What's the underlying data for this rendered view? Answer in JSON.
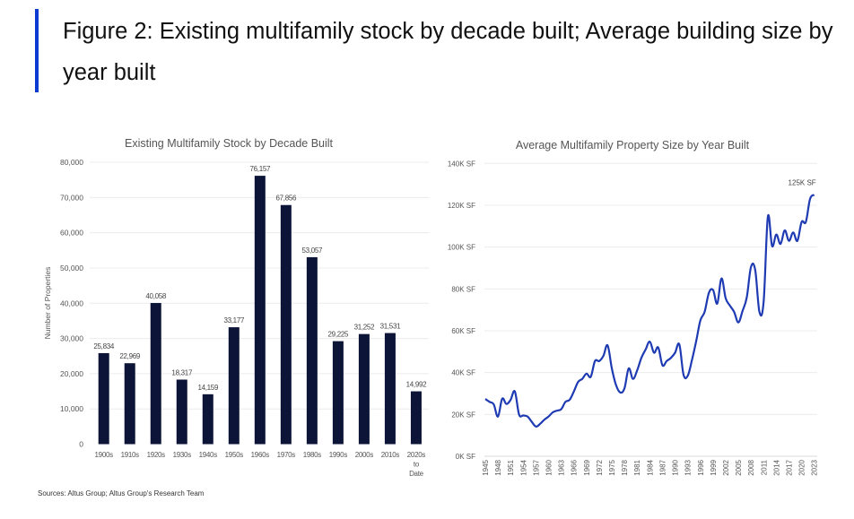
{
  "header": {
    "title": "Figure 2: Existing multifamily stock by decade built; Average building size by year built",
    "accent_color": "#0b3bd0"
  },
  "source": "Sources: Altus Group; Altus Group's Research Team",
  "chart_data": [
    {
      "type": "bar",
      "title": "Existing Multifamily Stock by Decade Built",
      "xlabel": "",
      "ylabel": "Number of Properties",
      "ylim": [
        0,
        80000
      ],
      "yticks": [
        "0",
        "10,000",
        "20,000",
        "30,000",
        "40,000",
        "50,000",
        "60,000",
        "70,000",
        "80,000"
      ],
      "grid": true,
      "bar_color": "#0c1538",
      "categories": [
        "1900s",
        "1910s",
        "1920s",
        "1930s",
        "1940s",
        "1950s",
        "1960s",
        "1970s",
        "1980s",
        "1990s",
        "2000s",
        "2010s",
        "2020s to Date"
      ],
      "values": [
        25834,
        22969,
        40058,
        18317,
        14159,
        33177,
        76157,
        67856,
        53057,
        29225,
        31252,
        31531,
        14992
      ],
      "data_labels": [
        "25,834",
        "22,969",
        "40,058",
        "18,317",
        "14,159",
        "33,177",
        "76,157",
        "67,856",
        "53,057",
        "29,225",
        "31,252",
        "31,531",
        "14,992"
      ]
    },
    {
      "type": "line",
      "title": "Average Multifamily Property Size by Year Built",
      "xlabel": "",
      "ylabel": "",
      "ylim": [
        0,
        140
      ],
      "yticks": [
        "0K SF",
        "20K SF",
        "40K SF",
        "60K SF",
        "80K SF",
        "100K SF",
        "120K SF",
        "140K SF"
      ],
      "grid": true,
      "line_color": "#1f3bb3",
      "x_start": 1945,
      "x_end": 2023,
      "xtick_step": 3,
      "annotation": "125K SF",
      "series": [
        {
          "values": [
            27.4,
            26,
            24.8,
            19,
            27.5,
            25,
            27,
            31,
            20,
            19.5,
            19,
            16.5,
            14.2,
            15.5,
            17.5,
            19,
            21,
            21.8,
            22.5,
            26,
            27,
            31,
            35.5,
            37,
            39.5,
            38,
            45.5,
            45.5,
            48,
            53,
            42,
            34,
            30.5,
            32.5,
            42,
            37,
            41,
            47,
            51,
            54.8,
            49.5,
            52,
            43.5,
            45.5,
            47,
            49.5,
            53.5,
            39,
            38.5,
            46,
            55,
            65,
            69,
            78,
            79.5,
            73,
            85,
            75.5,
            72,
            69,
            64,
            69.5,
            76,
            90.5,
            89,
            69,
            74,
            114.5,
            100.5,
            106,
            101.5,
            108,
            103,
            107,
            103,
            112,
            112,
            123,
            125
          ]
        }
      ]
    }
  ]
}
